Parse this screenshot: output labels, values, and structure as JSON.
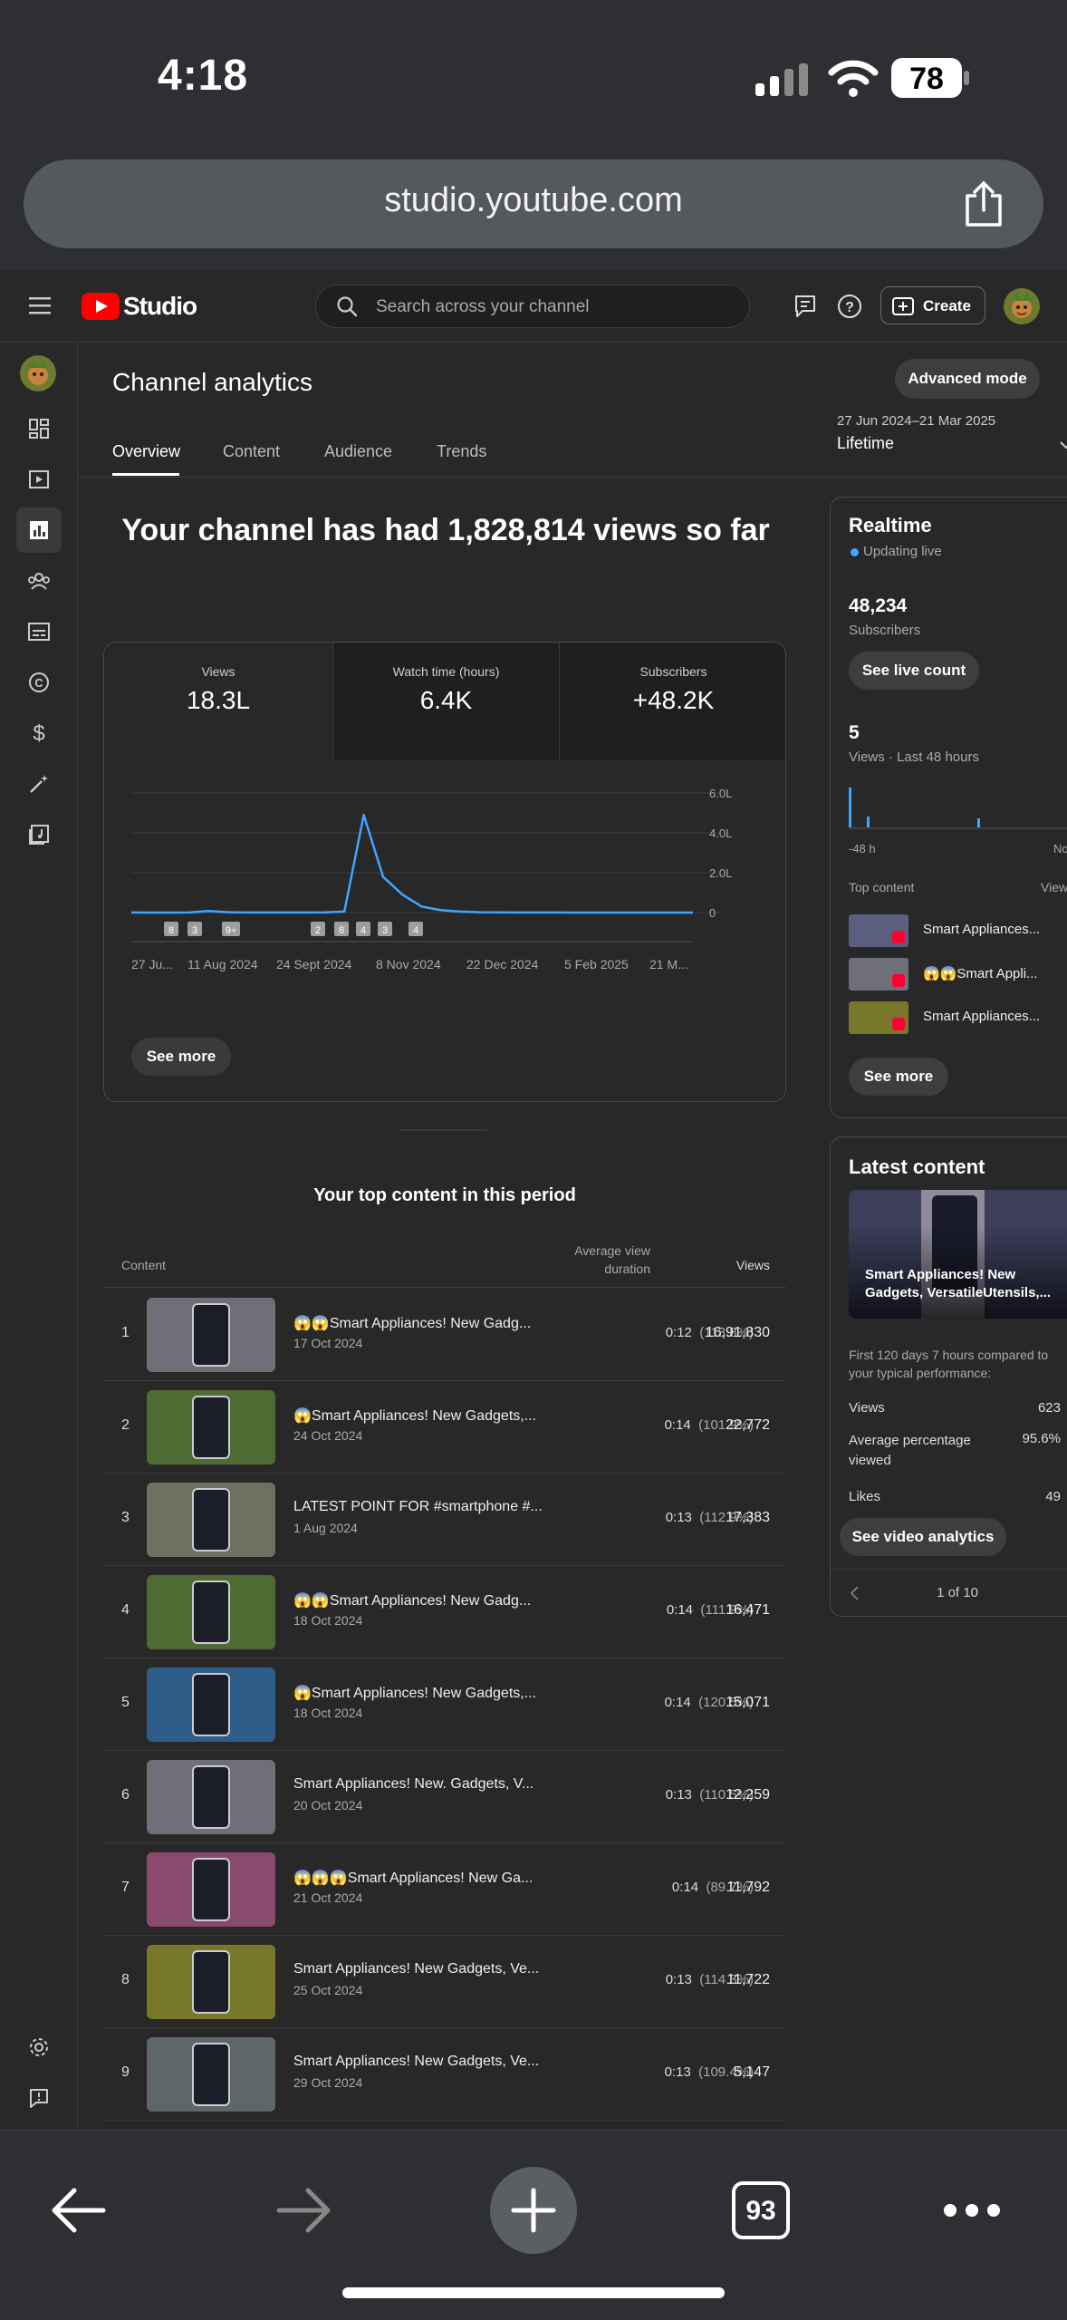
{
  "status": {
    "time": "4:18",
    "battery": "78"
  },
  "browser": {
    "url": "studio.youtube.com",
    "tab_count": "93"
  },
  "header": {
    "logo_text": "Studio",
    "search_placeholder": "Search across your channel",
    "create_label": "Create"
  },
  "page": {
    "title": "Channel analytics",
    "advanced_mode": "Advanced mode",
    "date_range": "27 Jun 2024–21 Mar 2025",
    "date_label": "Lifetime",
    "tabs": [
      "Overview",
      "Content",
      "Audience",
      "Trends"
    ],
    "headline": "Your channel has had 1,828,814 views so far"
  },
  "metrics": [
    {
      "label": "Views",
      "value": "18.3L"
    },
    {
      "label": "Watch time (hours)",
      "value": "6.4K"
    },
    {
      "label": "Subscribers",
      "value": "+48.2K"
    }
  ],
  "chart_data": {
    "type": "line",
    "x_tick_labels": [
      "27 Ju...",
      "11 Aug 2024",
      "24 Sept 2024",
      "8 Nov 2024",
      "22 Dec 2024",
      "5 Feb 2025",
      "21 M..."
    ],
    "y_tick_labels": [
      "6.0L",
      "4.0L",
      "2.0L",
      "0"
    ],
    "ylim": [
      0,
      600000
    ],
    "series": [
      {
        "values": [
          300,
          200,
          200,
          400,
          8000,
          2000,
          300,
          300,
          400,
          500,
          800,
          5000,
          490000,
          180000,
          90000,
          30000,
          12000,
          5000,
          2000,
          900,
          500,
          400,
          300,
          200,
          200,
          200,
          150,
          150,
          120,
          100
        ]
      }
    ],
    "markers": [
      "8",
      "3",
      "9+",
      "2",
      "8",
      "4",
      "3",
      "4"
    ]
  },
  "see_more": "See more",
  "top_content": {
    "title": "Your top content in this period",
    "headers": {
      "content": "Content",
      "avg": "Average view duration",
      "views": "Views"
    },
    "rows": [
      {
        "n": "1",
        "title": "😱😱Smart Appliances! New Gadg...",
        "date": "17 Oct 2024",
        "avg": "0:12",
        "pct": "(113.8%)",
        "views": "16,91,830"
      },
      {
        "n": "2",
        "title": "😱Smart Appliances! New Gadgets,...",
        "date": "24 Oct 2024",
        "avg": "0:14",
        "pct": "(101.9%)",
        "views": "22,772"
      },
      {
        "n": "3",
        "title": "LATEST POINT FOR #smartphone #...",
        "date": "1 Aug 2024",
        "avg": "0:13",
        "pct": "(112.9%)",
        "views": "17,383"
      },
      {
        "n": "4",
        "title": "😱😱Smart Appliances! New Gadg...",
        "date": "18 Oct 2024",
        "avg": "0:14",
        "pct": "(111.9%)",
        "views": "16,471"
      },
      {
        "n": "5",
        "title": "😱Smart Appliances! New Gadgets,...",
        "date": "18 Oct 2024",
        "avg": "0:14",
        "pct": "(120.5%)",
        "views": "15,071"
      },
      {
        "n": "6",
        "title": "Smart Appliances! New. Gadgets, V...",
        "date": "20 Oct 2024",
        "avg": "0:13",
        "pct": "(110.5%)",
        "views": "12,259"
      },
      {
        "n": "7",
        "title": "😱😱😱Smart Appliances! New Ga...",
        "date": "21 Oct 2024",
        "avg": "0:14",
        "pct": "(89.7%)",
        "views": "11,792"
      },
      {
        "n": "8",
        "title": "Smart Appliances! New Gadgets, Ve...",
        "date": "25 Oct 2024",
        "avg": "0:13",
        "pct": "(114.3%)",
        "views": "11,722"
      },
      {
        "n": "9",
        "title": "Smart Appliances! New Gadgets, Ve...",
        "date": "29 Oct 2024",
        "avg": "0:13",
        "pct": "(109.4%)",
        "views": "5,147"
      }
    ]
  },
  "realtime": {
    "title": "Realtime",
    "updating": "Updating live",
    "subs_value": "48,234",
    "subs_label": "Subscribers",
    "live_count_btn": "See live count",
    "views_value": "5",
    "views_label": "Views · Last 48 hours",
    "axis_left": "-48 h",
    "axis_right": "No",
    "top_content_label": "Top content",
    "views_col": "View",
    "items": [
      "Smart Appliances...",
      "😱😱Smart Appli...",
      "Smart Appliances..."
    ],
    "see_more": "See more"
  },
  "latest": {
    "title": "Latest content",
    "video_title": "Smart Appliances! New Gadgets, VersatileUtensils,...",
    "compare_text": "First 120 days 7 hours compared to your typical performance:",
    "stats": [
      {
        "label": "Views",
        "value": "623"
      },
      {
        "label": "Average percentage viewed",
        "value": "95.6%"
      },
      {
        "label": "Likes",
        "value": "49"
      }
    ],
    "btn": "See video analytics",
    "pager": "1 of 10"
  }
}
